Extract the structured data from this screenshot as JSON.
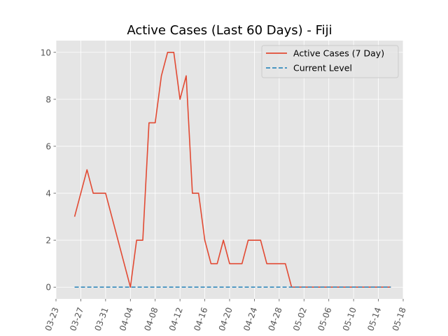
{
  "chart_data": {
    "type": "line",
    "title": "Active Cases (Last 60 Days) - Fiji",
    "xlabel": "",
    "ylabel": "",
    "xlim": [
      "2020-03-23",
      "2020-05-18"
    ],
    "ylim": [
      -0.5,
      10.5
    ],
    "x_ticks": [
      "03-23",
      "03-27",
      "03-31",
      "04-04",
      "04-08",
      "04-12",
      "04-16",
      "04-20",
      "04-24",
      "04-28",
      "05-02",
      "05-06",
      "05-10",
      "05-14",
      "05-18"
    ],
    "y_ticks": [
      0,
      2,
      4,
      6,
      8,
      10
    ],
    "grid": true,
    "legend_position": "top-right",
    "series": [
      {
        "name": "Active Cases (7 Day)",
        "color": "#E24A33",
        "style": "solid",
        "x": [
          "2020-03-26",
          "2020-03-28",
          "2020-03-29",
          "2020-03-30",
          "2020-03-31",
          "2020-04-01",
          "2020-04-02",
          "2020-04-03",
          "2020-04-04",
          "2020-04-05",
          "2020-04-06",
          "2020-04-07",
          "2020-04-08",
          "2020-04-09",
          "2020-04-10",
          "2020-04-11",
          "2020-04-12",
          "2020-04-13",
          "2020-04-14",
          "2020-04-15",
          "2020-04-16",
          "2020-04-17",
          "2020-04-18",
          "2020-04-19",
          "2020-04-20",
          "2020-04-21",
          "2020-04-22",
          "2020-04-23",
          "2020-04-24",
          "2020-04-25",
          "2020-04-26",
          "2020-04-27",
          "2020-04-28",
          "2020-04-29",
          "2020-04-30",
          "2020-05-01",
          "2020-05-02",
          "2020-05-03",
          "2020-05-04",
          "2020-05-05",
          "2020-05-06",
          "2020-05-07",
          "2020-05-08",
          "2020-05-09",
          "2020-05-10",
          "2020-05-11",
          "2020-05-12",
          "2020-05-13",
          "2020-05-14",
          "2020-05-15",
          "2020-05-16"
        ],
        "values": [
          3,
          5,
          4,
          4,
          4,
          3,
          2,
          1,
          0,
          2,
          2,
          7,
          7,
          9,
          10,
          10,
          8,
          9,
          4,
          4,
          2,
          1,
          1,
          2,
          1,
          1,
          1,
          2,
          2,
          2,
          1,
          1,
          1,
          1,
          0,
          0,
          0,
          0,
          0,
          0,
          0,
          0,
          0,
          0,
          0,
          0,
          0,
          0,
          0,
          0,
          0
        ]
      },
      {
        "name": "Current Level",
        "color": "#348ABD",
        "style": "dashed",
        "x": [
          "2020-03-26",
          "2020-05-16"
        ],
        "values": [
          0,
          0
        ]
      }
    ]
  }
}
